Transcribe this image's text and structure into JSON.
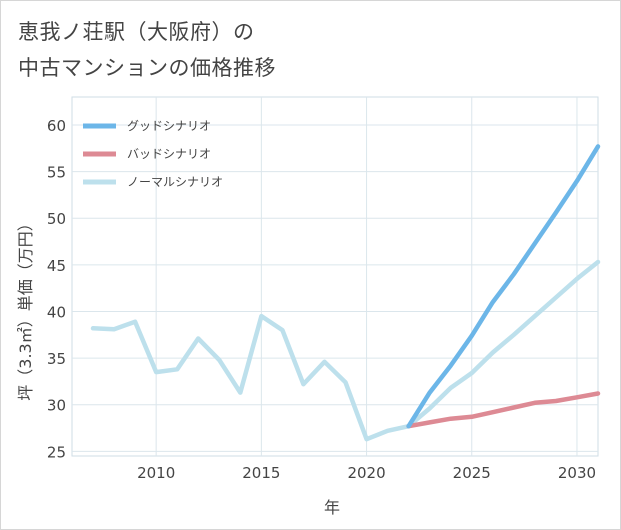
{
  "title": {
    "line1": "恵我ノ荘駅（大阪府）の",
    "line2": "中古マンションの価格推移"
  },
  "chart_data": {
    "type": "line",
    "xlabel": "年",
    "ylabel": "坪（3.3㎡）単価（万円）",
    "xlim": [
      2006,
      2031
    ],
    "ylim": [
      24.5,
      63
    ],
    "xticks": [
      2010,
      2015,
      2020,
      2025,
      2030
    ],
    "yticks": [
      25,
      30,
      35,
      40,
      45,
      50,
      55,
      60
    ],
    "grid": true,
    "legend_position": "top-left",
    "colors": {
      "good": "#6cb6e8",
      "bad": "#dd8a94",
      "normal": "#bde0ec"
    },
    "series": [
      {
        "key": "normal",
        "name": "ノーマルシナリオ",
        "x": [
          2007,
          2008,
          2009,
          2010,
          2011,
          2012,
          2013,
          2014,
          2015,
          2016,
          2017,
          2018,
          2019,
          2020,
          2021,
          2022,
          2023,
          2024,
          2025,
          2026,
          2027,
          2028,
          2029,
          2030,
          2031
        ],
        "values": [
          38.2,
          38.1,
          38.9,
          33.5,
          33.8,
          37.1,
          34.8,
          31.3,
          39.5,
          38.0,
          32.2,
          34.6,
          32.4,
          26.3,
          27.2,
          27.7,
          29.6,
          31.8,
          33.4,
          35.6,
          37.5,
          39.5,
          41.5,
          43.5,
          45.3
        ]
      },
      {
        "key": "bad",
        "name": "バッドシナリオ",
        "x": [
          2022,
          2023,
          2024,
          2025,
          2026,
          2027,
          2028,
          2029,
          2030,
          2031
        ],
        "values": [
          27.7,
          28.1,
          28.5,
          28.7,
          29.2,
          29.7,
          30.2,
          30.4,
          30.8,
          31.2
        ]
      },
      {
        "key": "good",
        "name": "グッドシナリオ",
        "x": [
          2022,
          2023,
          2024,
          2025,
          2026,
          2027,
          2028,
          2029,
          2030,
          2031
        ],
        "values": [
          27.7,
          31.3,
          34.2,
          37.4,
          41.0,
          44.0,
          47.3,
          50.6,
          54.0,
          57.7
        ]
      }
    ],
    "legend": [
      {
        "key": "good",
        "label": "グッドシナリオ"
      },
      {
        "key": "bad",
        "label": "バッドシナリオ"
      },
      {
        "key": "normal",
        "label": "ノーマルシナリオ"
      }
    ]
  }
}
